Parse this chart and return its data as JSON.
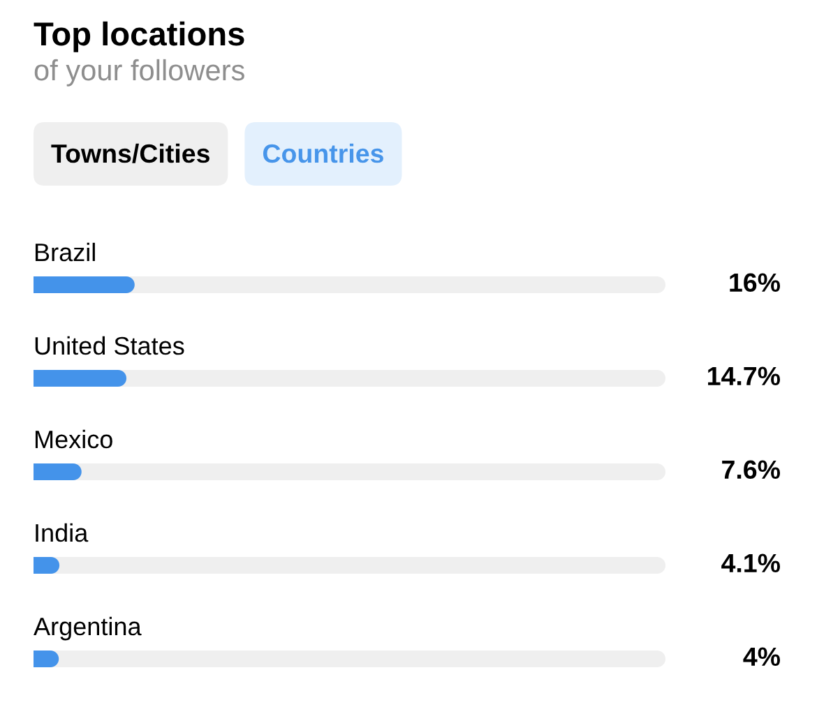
{
  "chart_data": {
    "type": "bar",
    "orientation": "horizontal",
    "title": "Top locations",
    "subtitle": "of your followers",
    "annotations": [
      "Towns/Cities",
      "Countries"
    ],
    "categories": [
      "Brazil",
      "United States",
      "Mexico",
      "India",
      "Argentina"
    ],
    "values": [
      16,
      14.7,
      7.6,
      4.1,
      4
    ],
    "value_labels": [
      "16%",
      "14.7%",
      "7.6%",
      "4.1%",
      "4%"
    ],
    "color": "#4493ea",
    "xlim": [
      0,
      100
    ],
    "tick_labels": "y"
  }
}
